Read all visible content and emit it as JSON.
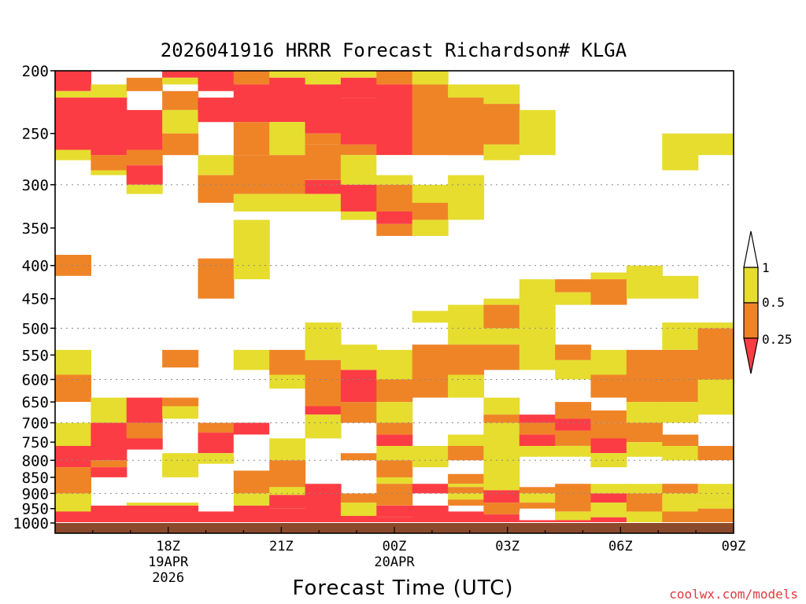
{
  "chart_data": {
    "type": "heatmap",
    "title": "2026041916 HRRR Forecast Richardson# KLGA",
    "xlabel": "Forecast Time (UTC)",
    "ylabel": "",
    "credit": "coolwx.com/models",
    "y_scale": "pressure (hPa), inverted",
    "ylim": [
      1000,
      200
    ],
    "xlim_hours": [
      0,
      18
    ],
    "grid": "dotted horizontal at 300, 400, 500, 600, 700, 800, 900 hPa",
    "yticks": [
      200,
      250,
      300,
      350,
      400,
      450,
      500,
      550,
      600,
      650,
      700,
      750,
      800,
      850,
      900,
      950,
      1000
    ],
    "xticks": [
      {
        "label": "18Z",
        "sub1": "19APR",
        "sub2": "2026",
        "hour": 3
      },
      {
        "label": "21Z",
        "sub1": "",
        "sub2": "",
        "hour": 6
      },
      {
        "label": "00Z",
        "sub1": "20APR",
        "sub2": "",
        "hour": 9
      },
      {
        "label": "03Z",
        "sub1": "",
        "sub2": "",
        "hour": 12
      },
      {
        "label": "06Z",
        "sub1": "",
        "sub2": "",
        "hour": 15
      },
      {
        "label": "09Z",
        "sub1": "",
        "sub2": "",
        "hour": 18
      }
    ],
    "colorbar": {
      "ticks": [
        "1",
        "0.5",
        "0.25"
      ],
      "bins": [
        {
          "range": ">1",
          "color": "#ffffff"
        },
        {
          "range": "0.5-1",
          "color": "#e6dd2f"
        },
        {
          "range": "0.25-0.5",
          "color": "#ef8427"
        },
        {
          "range": "<0.25",
          "color": "#fc3c44"
        }
      ]
    },
    "columns": [
      [
        [
          200,
          215,
          "R"
        ],
        [
          215,
          220,
          "Y"
        ],
        [
          220,
          265,
          "R"
        ],
        [
          265,
          275,
          "Y"
        ],
        [
          385,
          415,
          "O"
        ],
        [
          540,
          590,
          "Y"
        ],
        [
          590,
          650,
          "O"
        ],
        [
          650,
          700,
          "W"
        ],
        [
          700,
          760,
          "Y"
        ],
        [
          760,
          820,
          "R"
        ],
        [
          820,
          900,
          "O"
        ],
        [
          900,
          960,
          "Y"
        ],
        [
          960,
          1010,
          "R"
        ]
      ],
      [
        [
          210,
          220,
          "Y"
        ],
        [
          220,
          270,
          "R"
        ],
        [
          270,
          285,
          "O"
        ],
        [
          285,
          290,
          "Y"
        ],
        [
          640,
          700,
          "Y"
        ],
        [
          700,
          800,
          "R"
        ],
        [
          800,
          820,
          "O"
        ],
        [
          820,
          850,
          "R"
        ],
        [
          940,
          1010,
          "R"
        ]
      ],
      [
        [
          205,
          215,
          "O"
        ],
        [
          230,
          265,
          "R"
        ],
        [
          265,
          280,
          "O"
        ],
        [
          280,
          300,
          "R"
        ],
        [
          300,
          310,
          "Y"
        ],
        [
          640,
          700,
          "R"
        ],
        [
          700,
          740,
          "O"
        ],
        [
          740,
          770,
          "R"
        ],
        [
          930,
          940,
          "Y"
        ],
        [
          940,
          1010,
          "R"
        ]
      ],
      [
        [
          200,
          205,
          "R"
        ],
        [
          205,
          210,
          "Y"
        ],
        [
          215,
          230,
          "O"
        ],
        [
          230,
          250,
          "Y"
        ],
        [
          250,
          270,
          "O"
        ],
        [
          540,
          575,
          "O"
        ],
        [
          640,
          660,
          "O"
        ],
        [
          660,
          690,
          "Y"
        ],
        [
          780,
          850,
          "Y"
        ],
        [
          930,
          940,
          "Y"
        ],
        [
          940,
          1010,
          "R"
        ]
      ],
      [
        [
          200,
          215,
          "R"
        ],
        [
          220,
          240,
          "R"
        ],
        [
          270,
          290,
          "Y"
        ],
        [
          290,
          320,
          "O"
        ],
        [
          390,
          450,
          "O"
        ],
        [
          700,
          725,
          "O"
        ],
        [
          725,
          780,
          "R"
        ],
        [
          780,
          810,
          "Y"
        ],
        [
          960,
          1010,
          "R"
        ]
      ],
      [
        [
          200,
          210,
          "O"
        ],
        [
          210,
          240,
          "R"
        ],
        [
          240,
          270,
          "O"
        ],
        [
          270,
          310,
          "O"
        ],
        [
          310,
          330,
          "Y"
        ],
        [
          340,
          420,
          "Y"
        ],
        [
          540,
          580,
          "Y"
        ],
        [
          700,
          730,
          "R"
        ],
        [
          730,
          790,
          "W"
        ],
        [
          830,
          900,
          "O"
        ],
        [
          900,
          940,
          "Y"
        ],
        [
          940,
          1010,
          "R"
        ]
      ],
      [
        [
          200,
          205,
          "Y"
        ],
        [
          205,
          240,
          "R"
        ],
        [
          240,
          270,
          "Y"
        ],
        [
          270,
          310,
          "O"
        ],
        [
          310,
          330,
          "Y"
        ],
        [
          540,
          590,
          "O"
        ],
        [
          590,
          620,
          "Y"
        ],
        [
          620,
          740,
          "W"
        ],
        [
          740,
          800,
          "Y"
        ],
        [
          800,
          880,
          "O"
        ],
        [
          880,
          905,
          "Y"
        ],
        [
          905,
          950,
          "R"
        ],
        [
          950,
          1010,
          "R"
        ]
      ],
      [
        [
          200,
          210,
          "Y"
        ],
        [
          210,
          250,
          "R"
        ],
        [
          250,
          260,
          "O"
        ],
        [
          260,
          295,
          "O"
        ],
        [
          295,
          310,
          "R"
        ],
        [
          310,
          330,
          "Y"
        ],
        [
          490,
          560,
          "Y"
        ],
        [
          560,
          660,
          "O"
        ],
        [
          660,
          680,
          "R"
        ],
        [
          680,
          740,
          "Y"
        ],
        [
          870,
          1010,
          "R"
        ]
      ],
      [
        [
          200,
          205,
          "Y"
        ],
        [
          205,
          220,
          "R"
        ],
        [
          220,
          260,
          "R"
        ],
        [
          260,
          270,
          "O"
        ],
        [
          270,
          300,
          "Y"
        ],
        [
          300,
          330,
          "R"
        ],
        [
          330,
          340,
          "Y"
        ],
        [
          530,
          580,
          "Y"
        ],
        [
          580,
          650,
          "R"
        ],
        [
          650,
          700,
          "O"
        ],
        [
          780,
          800,
          "O"
        ],
        [
          900,
          930,
          "O"
        ],
        [
          930,
          975,
          "Y"
        ],
        [
          975,
          1010,
          "R"
        ]
      ],
      [
        [
          200,
          210,
          "O"
        ],
        [
          210,
          270,
          "R"
        ],
        [
          270,
          290,
          "W"
        ],
        [
          290,
          300,
          "Y"
        ],
        [
          300,
          330,
          "O"
        ],
        [
          330,
          345,
          "R"
        ],
        [
          345,
          360,
          "O"
        ],
        [
          540,
          600,
          "Y"
        ],
        [
          600,
          650,
          "O"
        ],
        [
          650,
          700,
          "Y"
        ],
        [
          700,
          730,
          "O"
        ],
        [
          730,
          760,
          "R"
        ],
        [
          760,
          800,
          "Y"
        ],
        [
          800,
          850,
          "O"
        ],
        [
          850,
          870,
          "Y"
        ],
        [
          870,
          940,
          "O"
        ],
        [
          940,
          980,
          "R"
        ],
        [
          980,
          1010,
          "R"
        ]
      ],
      [
        [
          200,
          210,
          "Y"
        ],
        [
          210,
          270,
          "O"
        ],
        [
          300,
          320,
          "Y"
        ],
        [
          320,
          340,
          "O"
        ],
        [
          340,
          360,
          "Y"
        ],
        [
          470,
          490,
          "Y"
        ],
        [
          530,
          640,
          "O"
        ],
        [
          760,
          820,
          "Y"
        ],
        [
          870,
          900,
          "R"
        ],
        [
          940,
          1010,
          "R"
        ]
      ],
      [
        [
          210,
          220,
          "Y"
        ],
        [
          220,
          270,
          "O"
        ],
        [
          290,
          340,
          "Y"
        ],
        [
          460,
          530,
          "Y"
        ],
        [
          530,
          590,
          "O"
        ],
        [
          590,
          640,
          "Y"
        ],
        [
          730,
          760,
          "Y"
        ],
        [
          760,
          800,
          "O"
        ],
        [
          840,
          870,
          "O"
        ],
        [
          870,
          880,
          "Y"
        ],
        [
          880,
          900,
          "O"
        ],
        [
          900,
          920,
          "Y"
        ],
        [
          920,
          940,
          "O"
        ],
        [
          960,
          1010,
          "R"
        ]
      ],
      [
        [
          210,
          225,
          "Y"
        ],
        [
          225,
          260,
          "O"
        ],
        [
          260,
          275,
          "Y"
        ],
        [
          450,
          460,
          "Y"
        ],
        [
          460,
          500,
          "O"
        ],
        [
          500,
          530,
          "Y"
        ],
        [
          530,
          580,
          "O"
        ],
        [
          640,
          680,
          "Y"
        ],
        [
          680,
          700,
          "O"
        ],
        [
          700,
          890,
          "Y"
        ],
        [
          890,
          930,
          "R"
        ],
        [
          930,
          970,
          "O"
        ],
        [
          970,
          1010,
          "R"
        ]
      ],
      [
        [
          230,
          270,
          "Y"
        ],
        [
          420,
          500,
          "Y"
        ],
        [
          500,
          580,
          "Y"
        ],
        [
          680,
          700,
          "R"
        ],
        [
          700,
          730,
          "O"
        ],
        [
          730,
          760,
          "R"
        ],
        [
          760,
          790,
          "Y"
        ],
        [
          880,
          900,
          "O"
        ],
        [
          900,
          930,
          "Y"
        ],
        [
          930,
          950,
          "O"
        ],
        [
          960,
          990,
          "W"
        ],
        [
          990,
          1010,
          "R"
        ]
      ],
      [
        [
          420,
          440,
          "O"
        ],
        [
          440,
          460,
          "Y"
        ],
        [
          530,
          560,
          "O"
        ],
        [
          560,
          600,
          "Y"
        ],
        [
          650,
          690,
          "O"
        ],
        [
          690,
          720,
          "R"
        ],
        [
          720,
          760,
          "O"
        ],
        [
          760,
          790,
          "Y"
        ],
        [
          870,
          960,
          "O"
        ],
        [
          960,
          990,
          "Y"
        ],
        [
          990,
          1010,
          "R"
        ]
      ],
      [
        [
          410,
          420,
          "Y"
        ],
        [
          420,
          460,
          "O"
        ],
        [
          540,
          590,
          "Y"
        ],
        [
          590,
          640,
          "O"
        ],
        [
          670,
          700,
          "O"
        ],
        [
          700,
          740,
          "O"
        ],
        [
          740,
          780,
          "R"
        ],
        [
          780,
          820,
          "Y"
        ],
        [
          870,
          900,
          "Y"
        ],
        [
          900,
          930,
          "R"
        ],
        [
          930,
          980,
          "Y"
        ],
        [
          980,
          1010,
          "R"
        ]
      ],
      [
        [
          400,
          450,
          "Y"
        ],
        [
          540,
          650,
          "O"
        ],
        [
          650,
          700,
          "Y"
        ],
        [
          700,
          750,
          "O"
        ],
        [
          750,
          790,
          "Y"
        ],
        [
          870,
          900,
          "Y"
        ],
        [
          900,
          960,
          "O"
        ],
        [
          960,
          1000,
          "Y"
        ],
        [
          1000,
          1010,
          "R"
        ]
      ],
      [
        [
          250,
          285,
          "Y"
        ],
        [
          415,
          450,
          "Y"
        ],
        [
          490,
          540,
          "Y"
        ],
        [
          540,
          650,
          "O"
        ],
        [
          650,
          700,
          "Y"
        ],
        [
          730,
          760,
          "O"
        ],
        [
          760,
          800,
          "Y"
        ],
        [
          870,
          900,
          "O"
        ],
        [
          900,
          960,
          "Y"
        ],
        [
          960,
          1000,
          "O"
        ],
        [
          1000,
          1010,
          "R"
        ]
      ],
      [
        [
          250,
          270,
          "Y"
        ],
        [
          490,
          500,
          "Y"
        ],
        [
          500,
          600,
          "O"
        ],
        [
          600,
          680,
          "Y"
        ],
        [
          760,
          800,
          "O"
        ],
        [
          800,
          870,
          "W"
        ],
        [
          870,
          930,
          "Y"
        ],
        [
          930,
          950,
          "Y"
        ],
        [
          950,
          1000,
          "O"
        ],
        [
          1000,
          1010,
          "R"
        ]
      ]
    ]
  }
}
